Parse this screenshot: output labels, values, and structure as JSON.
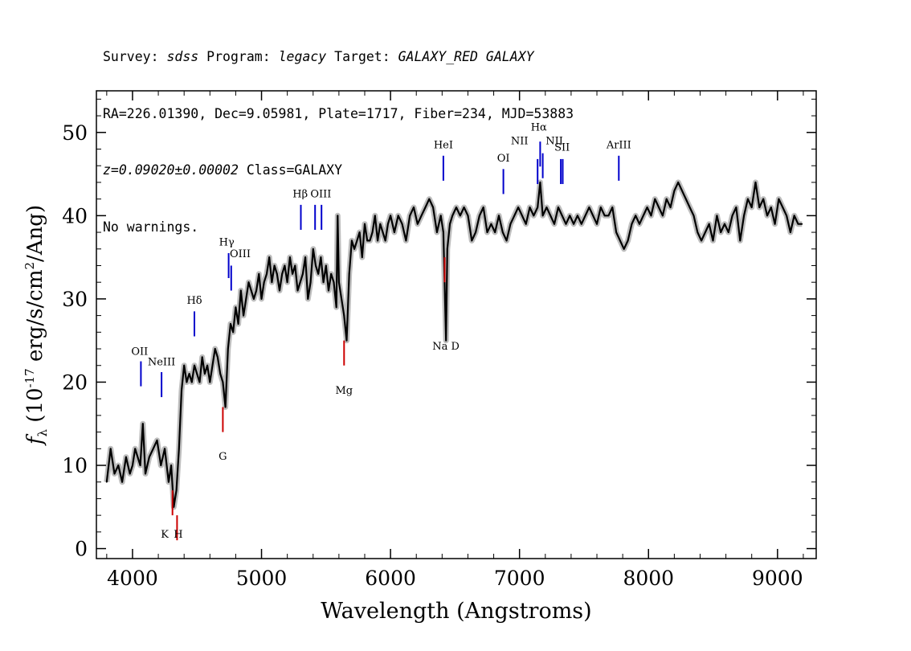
{
  "header": {
    "line1": {
      "survey_label": "Survey:",
      "survey": "sdss",
      "program_label": "Program:",
      "program": "legacy",
      "target_label": "Target:",
      "target": "GALAXY_RED GALAXY"
    },
    "line2": "RA=226.01390, Dec=9.05981, Plate=1717, Fiber=234, MJD=53883",
    "line3": {
      "z": "z=0.09020±0.00002",
      "class": "Class=GALAXY"
    },
    "line4": "No warnings."
  },
  "chart_data": {
    "type": "line",
    "xlabel": "Wavelength (Angstroms)",
    "ylabel": "fλ (10^-17 erg/s/cm^2/Ang)",
    "xlim": [
      3720,
      9300
    ],
    "ylim": [
      -1.2,
      55
    ],
    "xticks": [
      4000,
      5000,
      6000,
      7000,
      8000,
      9000
    ],
    "yticks": [
      0,
      10,
      20,
      30,
      40,
      50
    ],
    "grid": false,
    "colors": {
      "flux": "#000000",
      "flux_error_band": "#bdbdbd",
      "emission": "#0000cc",
      "absorption": "#cc0000"
    },
    "series": [
      {
        "name": "flux",
        "x": [
          3800,
          3830,
          3860,
          3890,
          3920,
          3950,
          3980,
          4000,
          4020,
          4040,
          4060,
          4080,
          4100,
          4130,
          4160,
          4190,
          4220,
          4250,
          4280,
          4300,
          4320,
          4340,
          4360,
          4380,
          4400,
          4420,
          4440,
          4460,
          4480,
          4500,
          4520,
          4540,
          4560,
          4580,
          4600,
          4620,
          4640,
          4660,
          4680,
          4700,
          4720,
          4740,
          4760,
          4780,
          4800,
          4820,
          4840,
          4860,
          4880,
          4900,
          4920,
          4940,
          4960,
          4980,
          5000,
          5020,
          5040,
          5060,
          5080,
          5100,
          5120,
          5140,
          5160,
          5180,
          5200,
          5220,
          5240,
          5260,
          5280,
          5300,
          5320,
          5340,
          5360,
          5380,
          5400,
          5420,
          5440,
          5460,
          5480,
          5500,
          5520,
          5540,
          5560,
          5580,
          5590,
          5600,
          5620,
          5640,
          5660,
          5680,
          5700,
          5720,
          5740,
          5760,
          5780,
          5800,
          5820,
          5840,
          5860,
          5880,
          5900,
          5920,
          5940,
          5960,
          5980,
          6000,
          6030,
          6060,
          6090,
          6120,
          6150,
          6180,
          6210,
          6240,
          6270,
          6300,
          6330,
          6360,
          6390,
          6410,
          6430,
          6440,
          6460,
          6480,
          6510,
          6540,
          6570,
          6600,
          6630,
          6660,
          6690,
          6720,
          6750,
          6780,
          6810,
          6840,
          6870,
          6900,
          6930,
          6960,
          6990,
          7020,
          7050,
          7080,
          7110,
          7140,
          7160,
          7180,
          7210,
          7240,
          7270,
          7300,
          7330,
          7360,
          7390,
          7420,
          7450,
          7480,
          7510,
          7540,
          7570,
          7600,
          7630,
          7660,
          7690,
          7720,
          7750,
          7780,
          7810,
          7840,
          7870,
          7900,
          7930,
          7960,
          7990,
          8020,
          8050,
          8080,
          8110,
          8140,
          8170,
          8200,
          8230,
          8260,
          8290,
          8320,
          8350,
          8380,
          8410,
          8440,
          8470,
          8500,
          8530,
          8560,
          8590,
          8620,
          8650,
          8680,
          8710,
          8740,
          8770,
          8800,
          8830,
          8860,
          8890,
          8920,
          8950,
          8980,
          9010,
          9040,
          9070,
          9100,
          9130,
          9160,
          9190
        ],
        "values": [
          8,
          12,
          9,
          10,
          8,
          11,
          9,
          10,
          12,
          11,
          10,
          15,
          9,
          11,
          12,
          13,
          10,
          12,
          8,
          10,
          5,
          7,
          12,
          19,
          22,
          20,
          21,
          20,
          22,
          21,
          20,
          23,
          21,
          22,
          20,
          22,
          24,
          23,
          21,
          20,
          17,
          24,
          27,
          26,
          29,
          27,
          31,
          28,
          30,
          32,
          31,
          30,
          31,
          33,
          30,
          32,
          33,
          35,
          32,
          34,
          33,
          31,
          33,
          34,
          32,
          35,
          33,
          34,
          31,
          32,
          33,
          35,
          30,
          32,
          36,
          34,
          33,
          35,
          32,
          34,
          31,
          33,
          32,
          29,
          40,
          32,
          30,
          28,
          25,
          33,
          37,
          36,
          37,
          38,
          35,
          39,
          37,
          37,
          38,
          40,
          37,
          39,
          38,
          37,
          39,
          40,
          38,
          40,
          39,
          37,
          40,
          41,
          39,
          40,
          41,
          42,
          41,
          38,
          40,
          38,
          25,
          36,
          39,
          40,
          41,
          40,
          41,
          40,
          37,
          38,
          40,
          41,
          38,
          39,
          38,
          40,
          38,
          37,
          39,
          40,
          41,
          40,
          39,
          41,
          40,
          41,
          44,
          40,
          41,
          40,
          39,
          41,
          40,
          39,
          40,
          39,
          40,
          39,
          40,
          41,
          40,
          39,
          41,
          40,
          40,
          41,
          38,
          37,
          36,
          37,
          39,
          40,
          39,
          40,
          41,
          40,
          42,
          41,
          40,
          42,
          41,
          43,
          44,
          43,
          42,
          41,
          40,
          38,
          37,
          38,
          39,
          37,
          40,
          38,
          39,
          38,
          40,
          41,
          37,
          40,
          42,
          41,
          44,
          41,
          42,
          40,
          41,
          39,
          42,
          41,
          40,
          38,
          40,
          39,
          39
        ]
      }
    ],
    "line_markers": {
      "emission": [
        {
          "label": "OII",
          "x": 4065,
          "top": 22.5
        },
        {
          "label": "NeIII",
          "x": 4225,
          "top": 21.2
        },
        {
          "label": "Hδ",
          "x": 4480,
          "top": 28.5
        },
        {
          "label": "Hγ",
          "x": 4745,
          "top": 35.5
        },
        {
          "label": "OIII",
          "x": 4765,
          "top": 34.0
        },
        {
          "label": "Hβ",
          "x": 5305,
          "top": 41.3
        },
        {
          "label": "OIII",
          "x": 5415,
          "top": 41.3
        },
        {
          "label": "OIII",
          "x": 5465,
          "top": 41.3
        },
        {
          "label": "HeI",
          "x": 6410,
          "top": 47.2
        },
        {
          "label": "OI",
          "x": 6875,
          "top": 45.6
        },
        {
          "label": "NII",
          "x": 7140,
          "top": 46.8
        },
        {
          "label": "Hα",
          "x": 7160,
          "top": 48.9
        },
        {
          "label": "NII",
          "x": 7180,
          "top": 47.5
        },
        {
          "label": "SII",
          "x": 7320,
          "top": 46.8
        },
        {
          "label": "SII",
          "x": 7335,
          "top": 46.8
        },
        {
          "label": "ArIII",
          "x": 7770,
          "top": 47.2
        }
      ],
      "absorption": [
        {
          "label": "K",
          "x": 4310
        },
        {
          "label": "H",
          "x": 4345
        },
        {
          "label": "G",
          "x": 4700
        },
        {
          "label": "Mg",
          "x": 5640
        },
        {
          "label": "Na",
          "x": 6420
        }
      ]
    }
  },
  "labels": {
    "emission": [
      {
        "text": "OII",
        "x": 4055,
        "y": 23.3
      },
      {
        "text": "NeIII",
        "x": 4225,
        "y": 22.0
      },
      {
        "text": "Hδ",
        "x": 4480,
        "y": 29.4
      },
      {
        "text": "Hγ",
        "x": 4730,
        "y": 36.4
      },
      {
        "text": "OIII",
        "x": 4835,
        "y": 35.0
      },
      {
        "text": "Hβ",
        "x": 5300,
        "y": 42.2
      },
      {
        "text": "OIII",
        "x": 5460,
        "y": 42.2
      },
      {
        "text": "HeI",
        "x": 6410,
        "y": 48.1
      },
      {
        "text": "OI",
        "x": 6875,
        "y": 46.5
      },
      {
        "text": "NII",
        "x": 7000,
        "y": 48.6
      },
      {
        "text": "Hα",
        "x": 7150,
        "y": 50.2
      },
      {
        "text": "NII",
        "x": 7270,
        "y": 48.6
      },
      {
        "text": "SII",
        "x": 7330,
        "y": 47.8
      },
      {
        "text": "ArIII",
        "x": 7770,
        "y": 48.1
      }
    ],
    "absorption": [
      {
        "text": "K",
        "x": 4250,
        "y": 1.3
      },
      {
        "text": "H",
        "x": 4355,
        "y": 1.3
      },
      {
        "text": "G",
        "x": 4700,
        "y": 10.7
      },
      {
        "text": "Mg",
        "x": 5640,
        "y": 18.6
      },
      {
        "text": "Na D",
        "x": 6430,
        "y": 23.9
      }
    ]
  }
}
